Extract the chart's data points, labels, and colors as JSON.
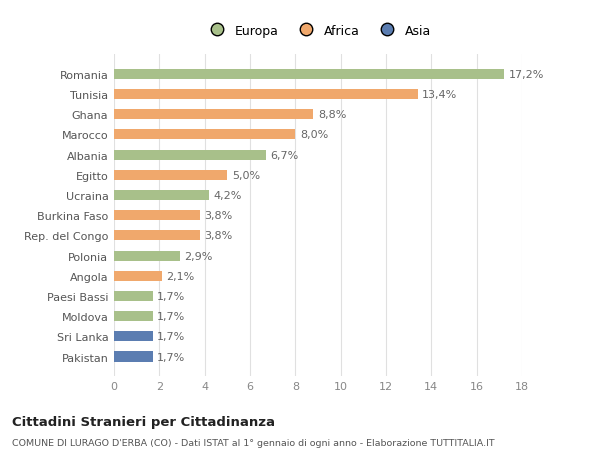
{
  "countries": [
    "Romania",
    "Tunisia",
    "Ghana",
    "Marocco",
    "Albania",
    "Egitto",
    "Ucraina",
    "Burkina Faso",
    "Rep. del Congo",
    "Polonia",
    "Angola",
    "Paesi Bassi",
    "Moldova",
    "Sri Lanka",
    "Pakistan"
  ],
  "values": [
    17.2,
    13.4,
    8.8,
    8.0,
    6.7,
    5.0,
    4.2,
    3.8,
    3.8,
    2.9,
    2.1,
    1.7,
    1.7,
    1.7,
    1.7
  ],
  "labels": [
    "17,2%",
    "13,4%",
    "8,8%",
    "8,0%",
    "6,7%",
    "5,0%",
    "4,2%",
    "3,8%",
    "3,8%",
    "2,9%",
    "2,1%",
    "1,7%",
    "1,7%",
    "1,7%",
    "1,7%"
  ],
  "continents": [
    "Europa",
    "Africa",
    "Africa",
    "Africa",
    "Europa",
    "Africa",
    "Europa",
    "Africa",
    "Africa",
    "Europa",
    "Africa",
    "Europa",
    "Europa",
    "Asia",
    "Asia"
  ],
  "colors": {
    "Europa": "#a8c08a",
    "Africa": "#f0a86c",
    "Asia": "#5b7db1"
  },
  "legend_labels": [
    "Europa",
    "Africa",
    "Asia"
  ],
  "legend_colors": [
    "#a8c08a",
    "#f0a86c",
    "#5b7db1"
  ],
  "xlim": [
    0,
    18
  ],
  "xticks": [
    0,
    2,
    4,
    6,
    8,
    10,
    12,
    14,
    16,
    18
  ],
  "title": "Cittadini Stranieri per Cittadinanza",
  "subtitle": "COMUNE DI LURAGO D'ERBA (CO) - Dati ISTAT al 1° gennaio di ogni anno - Elaborazione TUTTITALIA.IT",
  "bg_color": "#ffffff",
  "grid_color": "#e0e0e0",
  "bar_height": 0.5,
  "label_fontsize": 8.0,
  "bar_value_fontsize": 8.0,
  "value_color": "#666666",
  "ylabel_color": "#555555",
  "xlabel_color": "#888888"
}
